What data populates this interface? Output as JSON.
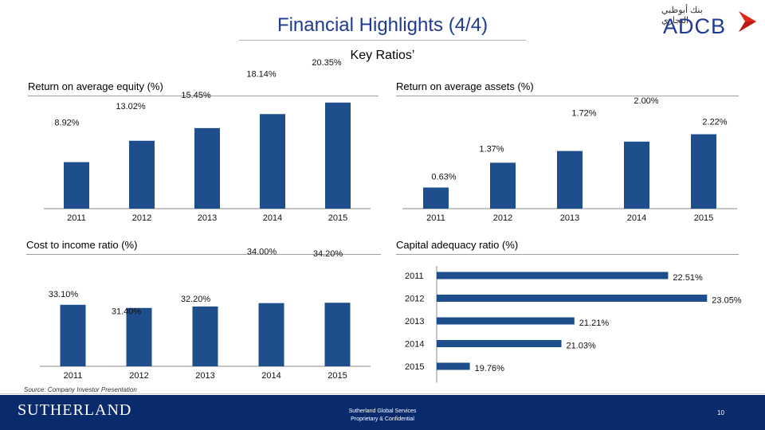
{
  "header": {
    "title": "Financial Highlights (4/4)",
    "subtitle": "Key Ratios’"
  },
  "brand": {
    "arabic": "بنك أبوظبي التجاري",
    "latin": "ADCB",
    "accent": "#e1251b",
    "primary": "#1f3a93"
  },
  "footer": {
    "source": "Source: Company Investor Presentation",
    "company": "SUTHERLAND",
    "line1": "Sutherland Global Services",
    "line2": "Proprietary & Confidential",
    "page": "10"
  },
  "colors": {
    "bar": "#1f4e8c",
    "axis": "#8a8a8a"
  },
  "chart_data": [
    {
      "type": "bar",
      "title": "Return on average equity (%)",
      "categories": [
        "2011",
        "2012",
        "2013",
        "2014",
        "2015"
      ],
      "values": [
        8.92,
        13.02,
        15.45,
        18.14,
        20.35
      ],
      "labels": [
        "8.92%",
        "13.02%",
        "15.45%",
        "18.14%",
        "20.35%"
      ],
      "ylim": [
        0,
        22
      ],
      "grid": false
    },
    {
      "type": "bar",
      "title": "Return on average assets (%)",
      "categories": [
        "2011",
        "2012",
        "2013",
        "2014",
        "2015"
      ],
      "values": [
        0.63,
        1.37,
        1.72,
        2.0,
        2.22
      ],
      "labels": [
        "0.63%",
        "1.37%",
        "1.72%",
        "2.00%",
        "2.22%"
      ],
      "ylim": [
        0,
        2.4
      ],
      "grid": false
    },
    {
      "type": "bar",
      "title": "Cost to income ratio (%)",
      "categories": [
        "2011",
        "2012",
        "2013",
        "2014",
        "2015"
      ],
      "values": [
        33.1,
        31.4,
        32.2,
        34.0,
        34.2
      ],
      "labels": [
        "33.10%",
        "31.40%",
        "32.20%",
        "34.00%",
        "34.20%"
      ],
      "ylim": [
        0,
        36
      ],
      "grid": false
    },
    {
      "type": "bar",
      "orientation": "horizontal",
      "title": "Capital adequacy ratio (%)",
      "categories": [
        "2011",
        "2012",
        "2013",
        "2014",
        "2015"
      ],
      "values": [
        22.51,
        23.05,
        21.21,
        21.03,
        19.76
      ],
      "labels": [
        "22.51%",
        "23.05%",
        "21.21%",
        "21.03%",
        "19.76%"
      ],
      "xlim": [
        19.3,
        23.5
      ],
      "grid": false
    }
  ]
}
